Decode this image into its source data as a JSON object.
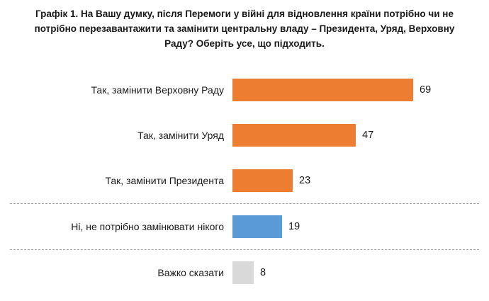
{
  "chart": {
    "title": "Графік 1. На Вашу думку, після Перемоги у війні для відновлення країни потрібно чи не потрібно перезавантажити та замінити центральну владу – Президента, Уряд, Верховну Раду? Оберіть усе, що підходить."
  },
  "chart_data": {
    "type": "bar",
    "orientation": "horizontal",
    "title": "Графік 1. На Вашу думку, після Перемоги у війні для відновлення країни потрібно чи не потрібно перезавантажити та замінити центральну владу – Президента, Уряд, Верховну Раду? Оберіть усе, що підходить.",
    "categories": [
      "Так, замінити Верховну Раду",
      "Так, замінити Уряд",
      "Так, замінити Президента",
      "Ні, не потрібно замінювати нікого",
      "Важко сказати"
    ],
    "values": [
      69,
      47,
      23,
      19,
      8
    ],
    "colors": [
      "#ED7D31",
      "#ED7D31",
      "#ED7D31",
      "#5B9BD5",
      "#D9D9D9"
    ],
    "separators_after_index": [
      2,
      3
    ],
    "xlim": [
      0,
      75
    ],
    "data_labels": true,
    "legend": false,
    "grid": false
  }
}
